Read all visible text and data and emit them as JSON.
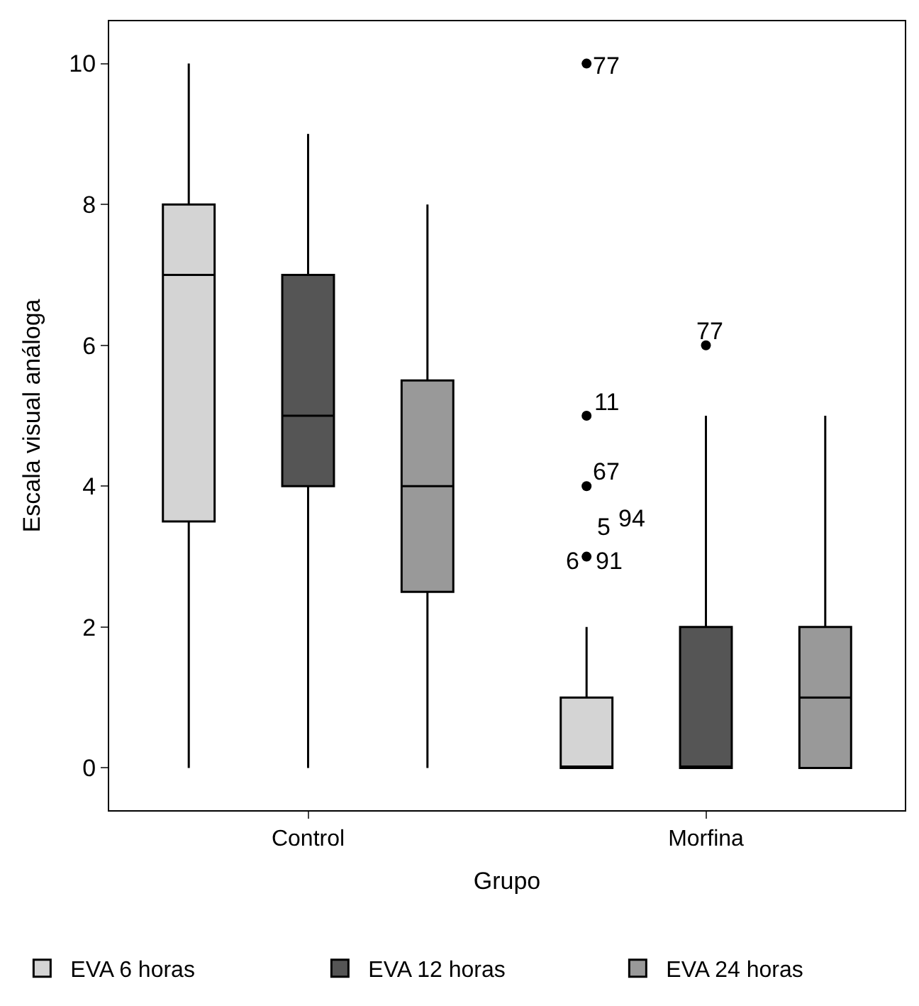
{
  "chart_data": {
    "type": "box",
    "categories": [
      "Control",
      "Morfina"
    ],
    "xlabel": "Grupo",
    "ylabel": "Escala visual análoga",
    "ylim": [
      -0.6,
      10.6
    ],
    "yticks": [
      0,
      2,
      4,
      6,
      8,
      10
    ],
    "legend": "bottom",
    "series": [
      {
        "name": "EVA 6 horas",
        "color": "#d4d4d4",
        "boxes": [
          {
            "low": 0,
            "q1": 3.5,
            "median": 7,
            "q3": 8,
            "high": 10
          },
          {
            "low": 0,
            "q1": 0,
            "median": 0,
            "q3": 1,
            "high": 2,
            "outliers": [
              3,
              4,
              5,
              10
            ]
          }
        ]
      },
      {
        "name": "EVA 12 horas",
        "color": "#555555",
        "boxes": [
          {
            "low": 0,
            "q1": 4,
            "median": 5,
            "q3": 7,
            "high": 9
          },
          {
            "low": 0,
            "q1": 0,
            "median": 0,
            "q3": 2,
            "high": 5,
            "outliers": [
              6
            ]
          }
        ]
      },
      {
        "name": "EVA 24 horas",
        "color": "#999999",
        "boxes": [
          {
            "low": 0,
            "q1": 2.5,
            "median": 4,
            "q3": 5.5,
            "high": 8
          },
          {
            "low": 0,
            "q1": 0,
            "median": 1,
            "q3": 2,
            "high": 5
          }
        ]
      }
    ],
    "annotations": [
      "77",
      "11",
      "67",
      "5",
      "94",
      "6",
      "91",
      "77"
    ]
  }
}
